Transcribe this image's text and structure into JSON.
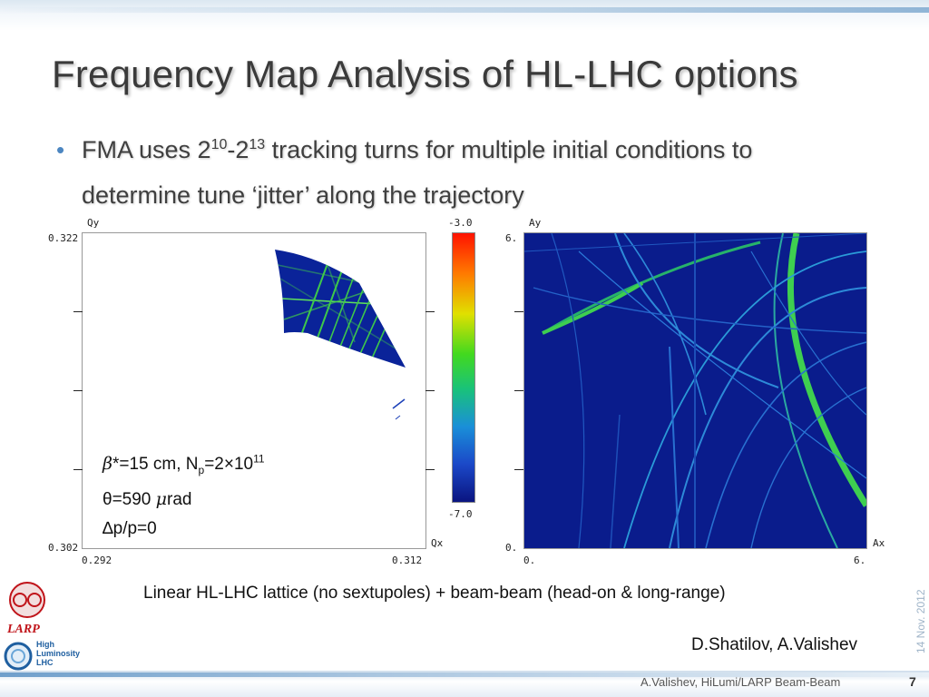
{
  "slide": {
    "title": "Frequency Map Analysis of HL-LHC options",
    "bullet": {
      "prefix": "FMA uses 2",
      "exp1": "10",
      "mid": "-2",
      "exp2": "13",
      "suffix": " tracking turns for multiple initial conditions to",
      "line2": "determine tune ‘jitter’ along the trajectory"
    },
    "annotation": {
      "beta_symbol": "β",
      "line1_a": "*=15 cm, N",
      "line1_sub": "p",
      "line1_b": "=2×10",
      "line1_sup": "11",
      "line2_symbol": "θ",
      "line2_a": "=590 ",
      "line2_mu": "μ",
      "line2_b": "rad",
      "line3": "∆p/p=0"
    },
    "caption": "Linear HL-LHC lattice (no sextupoles) + beam-beam (head-on & long-range)",
    "authors": "D.Shatilov, A.Valishev",
    "date": "14 Nov. 2012",
    "footer": "A.Valishev, HiLumi/LARP Beam-Beam",
    "page_number": "7"
  },
  "plot_tune": {
    "ylabel": "Qy",
    "xlabel": "Qx",
    "y_top": "0.322",
    "y_bottom": "0.302",
    "x_left": "0.292",
    "x_right": "0.312"
  },
  "colorbar": {
    "top": "-3.0",
    "bottom": "-7.0"
  },
  "plot_amp": {
    "ylabel": "Ay",
    "xlabel": "Ax",
    "y_top": "6.",
    "y_bottom": "0.",
    "x_left": "0.",
    "x_right": "6."
  },
  "logos": {
    "larp": "LARP",
    "hilumi_1": "High",
    "hilumi_2": "Luminosity",
    "hilumi_3": "LHC"
  },
  "colors": {
    "plot_background": "#0a1c8c",
    "resonance_line": "#33cc44",
    "bullet": "#4c86c1"
  }
}
